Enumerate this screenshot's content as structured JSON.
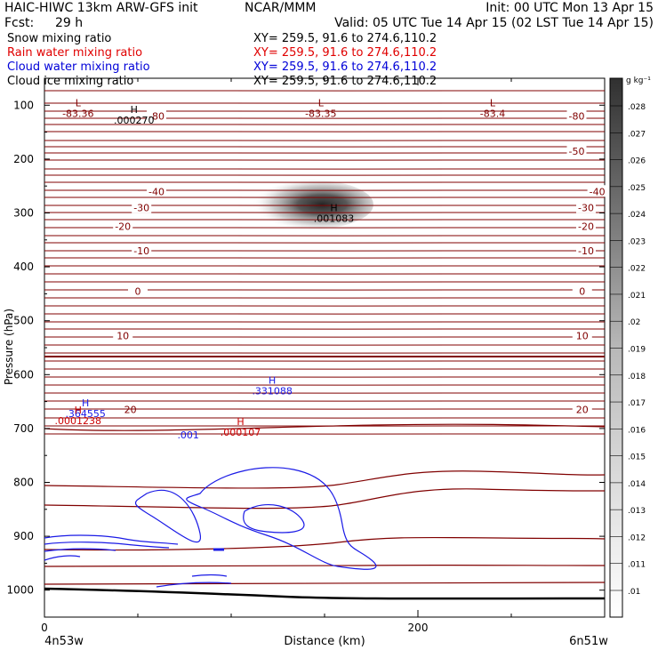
{
  "header": {
    "title": "HAIC-HIWC 13km ARW-GFS init",
    "org": "NCAR/MMM",
    "init": "Init: 00 UTC Mon 13 Apr 15",
    "fcst_label": "Fcst:",
    "fcst_value": "29 h",
    "valid": "Valid: 05 UTC Tue 14 Apr 15 (02 LST Tue 14 Apr 15)"
  },
  "fields": [
    {
      "name": "Snow mixing ratio",
      "xy": "XY= 259.5, 91.6 to 274.6,110.2",
      "color": "#000000"
    },
    {
      "name": "Rain water mixing ratio",
      "xy": "XY= 259.5, 91.6 to 274.6,110.2",
      "color": "#e00000"
    },
    {
      "name": "Cloud water mixing ratio",
      "xy": "XY= 259.5, 91.6 to 274.6,110.2",
      "color": "#0000d8"
    },
    {
      "name": "Cloud ice mixing ratio",
      "xy": "XY= 259.5, 91.6 to 274.6,110.2",
      "color": "#000000"
    }
  ],
  "colors": {
    "temperature": "#800000",
    "cloud_water": "#1a1ae6",
    "rain": "#cc0000",
    "labels": "#000000"
  },
  "chart_data": {
    "type": "cross-section",
    "ylabel": "Pressure (hPa)",
    "xlabel": "Distance (km)",
    "x_left_label": "4n53w",
    "x_right_label": "6n51w",
    "xlim": [
      0,
      300
    ],
    "ylim": [
      1050,
      50
    ],
    "x_ticks": [
      0,
      200
    ],
    "y_ticks": [
      100,
      200,
      300,
      400,
      500,
      600,
      700,
      800,
      900,
      1000
    ],
    "colorbar": {
      "unit": "g kg⁻¹",
      "ticks": [
        ".01",
        ".011",
        ".012",
        ".013",
        ".014",
        ".015",
        ".016",
        ".017",
        ".018",
        ".019",
        ".02",
        ".021",
        ".022",
        ".023",
        ".024",
        ".025",
        ".026",
        ".027",
        ".028"
      ]
    },
    "temperature_labels": [
      {
        "text": "-80",
        "x": 60,
        "p": 120
      },
      {
        "text": "-80",
        "x": 285,
        "p": 120
      },
      {
        "text": "-50",
        "x": 285,
        "p": 185
      },
      {
        "text": "-40",
        "x": 60,
        "p": 260
      },
      {
        "text": "-40",
        "x": 296,
        "p": 260
      },
      {
        "text": "-30",
        "x": 52,
        "p": 290
      },
      {
        "text": "-30",
        "x": 290,
        "p": 290
      },
      {
        "text": "-20",
        "x": 42,
        "p": 325
      },
      {
        "text": "-20",
        "x": 290,
        "p": 325
      },
      {
        "text": "-10",
        "x": 52,
        "p": 370
      },
      {
        "text": "-10",
        "x": 290,
        "p": 370
      },
      {
        "text": "0",
        "x": 50,
        "p": 445
      },
      {
        "text": "0",
        "x": 288,
        "p": 445
      },
      {
        "text": "10",
        "x": 42,
        "p": 528
      },
      {
        "text": "10",
        "x": 288,
        "p": 528
      },
      {
        "text": "20",
        "x": 288,
        "p": 665
      }
    ],
    "extrema": [
      {
        "mark": "L",
        "value": "-83.36",
        "x": 18,
        "p": 105,
        "color": "#800000"
      },
      {
        "mark": "L",
        "value": "-83.35",
        "x": 148,
        "p": 105,
        "color": "#800000"
      },
      {
        "mark": "L",
        "value": "-83.4",
        "x": 240,
        "p": 105,
        "color": "#800000"
      },
      {
        "mark": "H",
        "value": ".000270",
        "x": 48,
        "p": 118,
        "color": "#000000"
      },
      {
        "mark": "H",
        "value": ".001083",
        "x": 155,
        "p": 300,
        "color": "#000000"
      },
      {
        "mark": "H",
        "value": ".331088",
        "x": 122,
        "p": 620,
        "color": "#1a1ae6"
      },
      {
        "mark": "H",
        "value": ".364555",
        "x": 22,
        "p": 662,
        "color": "#1a1ae6"
      },
      {
        "mark": "H",
        "value": ".0001238",
        "x": 18,
        "p": 675,
        "color": "#cc0000"
      },
      {
        "mark": "H",
        "value": ".000107",
        "x": 105,
        "p": 697,
        "color": "#cc0000"
      }
    ],
    "value_labels": [
      {
        "text": ".001",
        "x": 77,
        "p": 712,
        "color": "#1a1ae6"
      },
      {
        "text": "20",
        "x": 46,
        "p": 665,
        "color": "#800000"
      }
    ]
  }
}
